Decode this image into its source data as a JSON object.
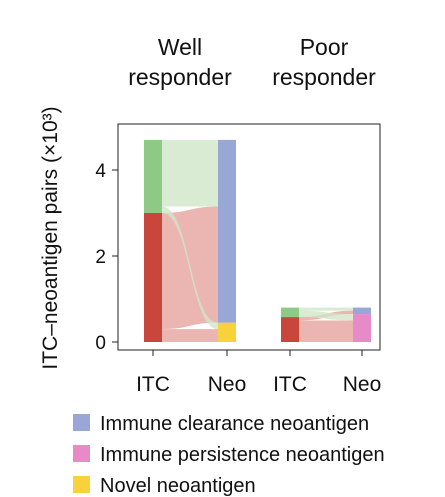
{
  "chart_data": {
    "type": "alluvial",
    "ylabel": "ITC–neoantigen pairs (×10³)",
    "ylim": [
      0,
      4.7
    ],
    "yticks": [
      0,
      2,
      4
    ],
    "grid": false,
    "legend_position": "bottom",
    "group_titles": [
      [
        "Well",
        "responder"
      ],
      [
        "Poor",
        "responder"
      ]
    ],
    "axis_labels": [
      "ITC",
      "Neo"
    ],
    "categories_itc": [
      "Green",
      "Red"
    ],
    "categories_neo": [
      "Immune clearance neoantigen",
      "Immune persistence neoantigen",
      "Novel neoantigen"
    ],
    "colors": {
      "itc_green": "#8ec986",
      "itc_red": "#c8463c",
      "immune_clearance": "#98a7d6",
      "immune_persistence": "#e68bc7",
      "novel": "#f8d23a",
      "flow_green": "#cfe6c8",
      "flow_red": "#e6a39d"
    },
    "groups": [
      {
        "name": "Well responder",
        "itc": {
          "red": 3.0,
          "green": 1.7
        },
        "neo": {
          "clearance": 4.25,
          "persistence": 0.0,
          "novel": 0.45
        },
        "flows": [
          {
            "from": "red",
            "to": "novel",
            "value": 0.3
          },
          {
            "from": "red",
            "to": "clearance",
            "value": 2.7
          },
          {
            "from": "green",
            "to": "novel",
            "value": 0.15
          },
          {
            "from": "green",
            "to": "clearance",
            "value": 1.55
          }
        ]
      },
      {
        "name": "Poor responder",
        "itc": {
          "red": 0.58,
          "green": 0.22
        },
        "neo": {
          "clearance": 0.15,
          "persistence": 0.65,
          "novel": 0.0
        },
        "flows": [
          {
            "from": "red",
            "to": "persistence",
            "value": 0.5
          },
          {
            "from": "red",
            "to": "clearance",
            "value": 0.08
          },
          {
            "from": "green",
            "to": "persistence",
            "value": 0.15
          },
          {
            "from": "green",
            "to": "clearance",
            "value": 0.07
          }
        ]
      }
    ],
    "legend": [
      {
        "label": "Immune clearance neoantigen",
        "color": "#98a7d6"
      },
      {
        "label": "Immune persistence neoantigen",
        "color": "#e68bc7"
      },
      {
        "label": "Novel neoantigen",
        "color": "#f8d23a"
      }
    ]
  }
}
